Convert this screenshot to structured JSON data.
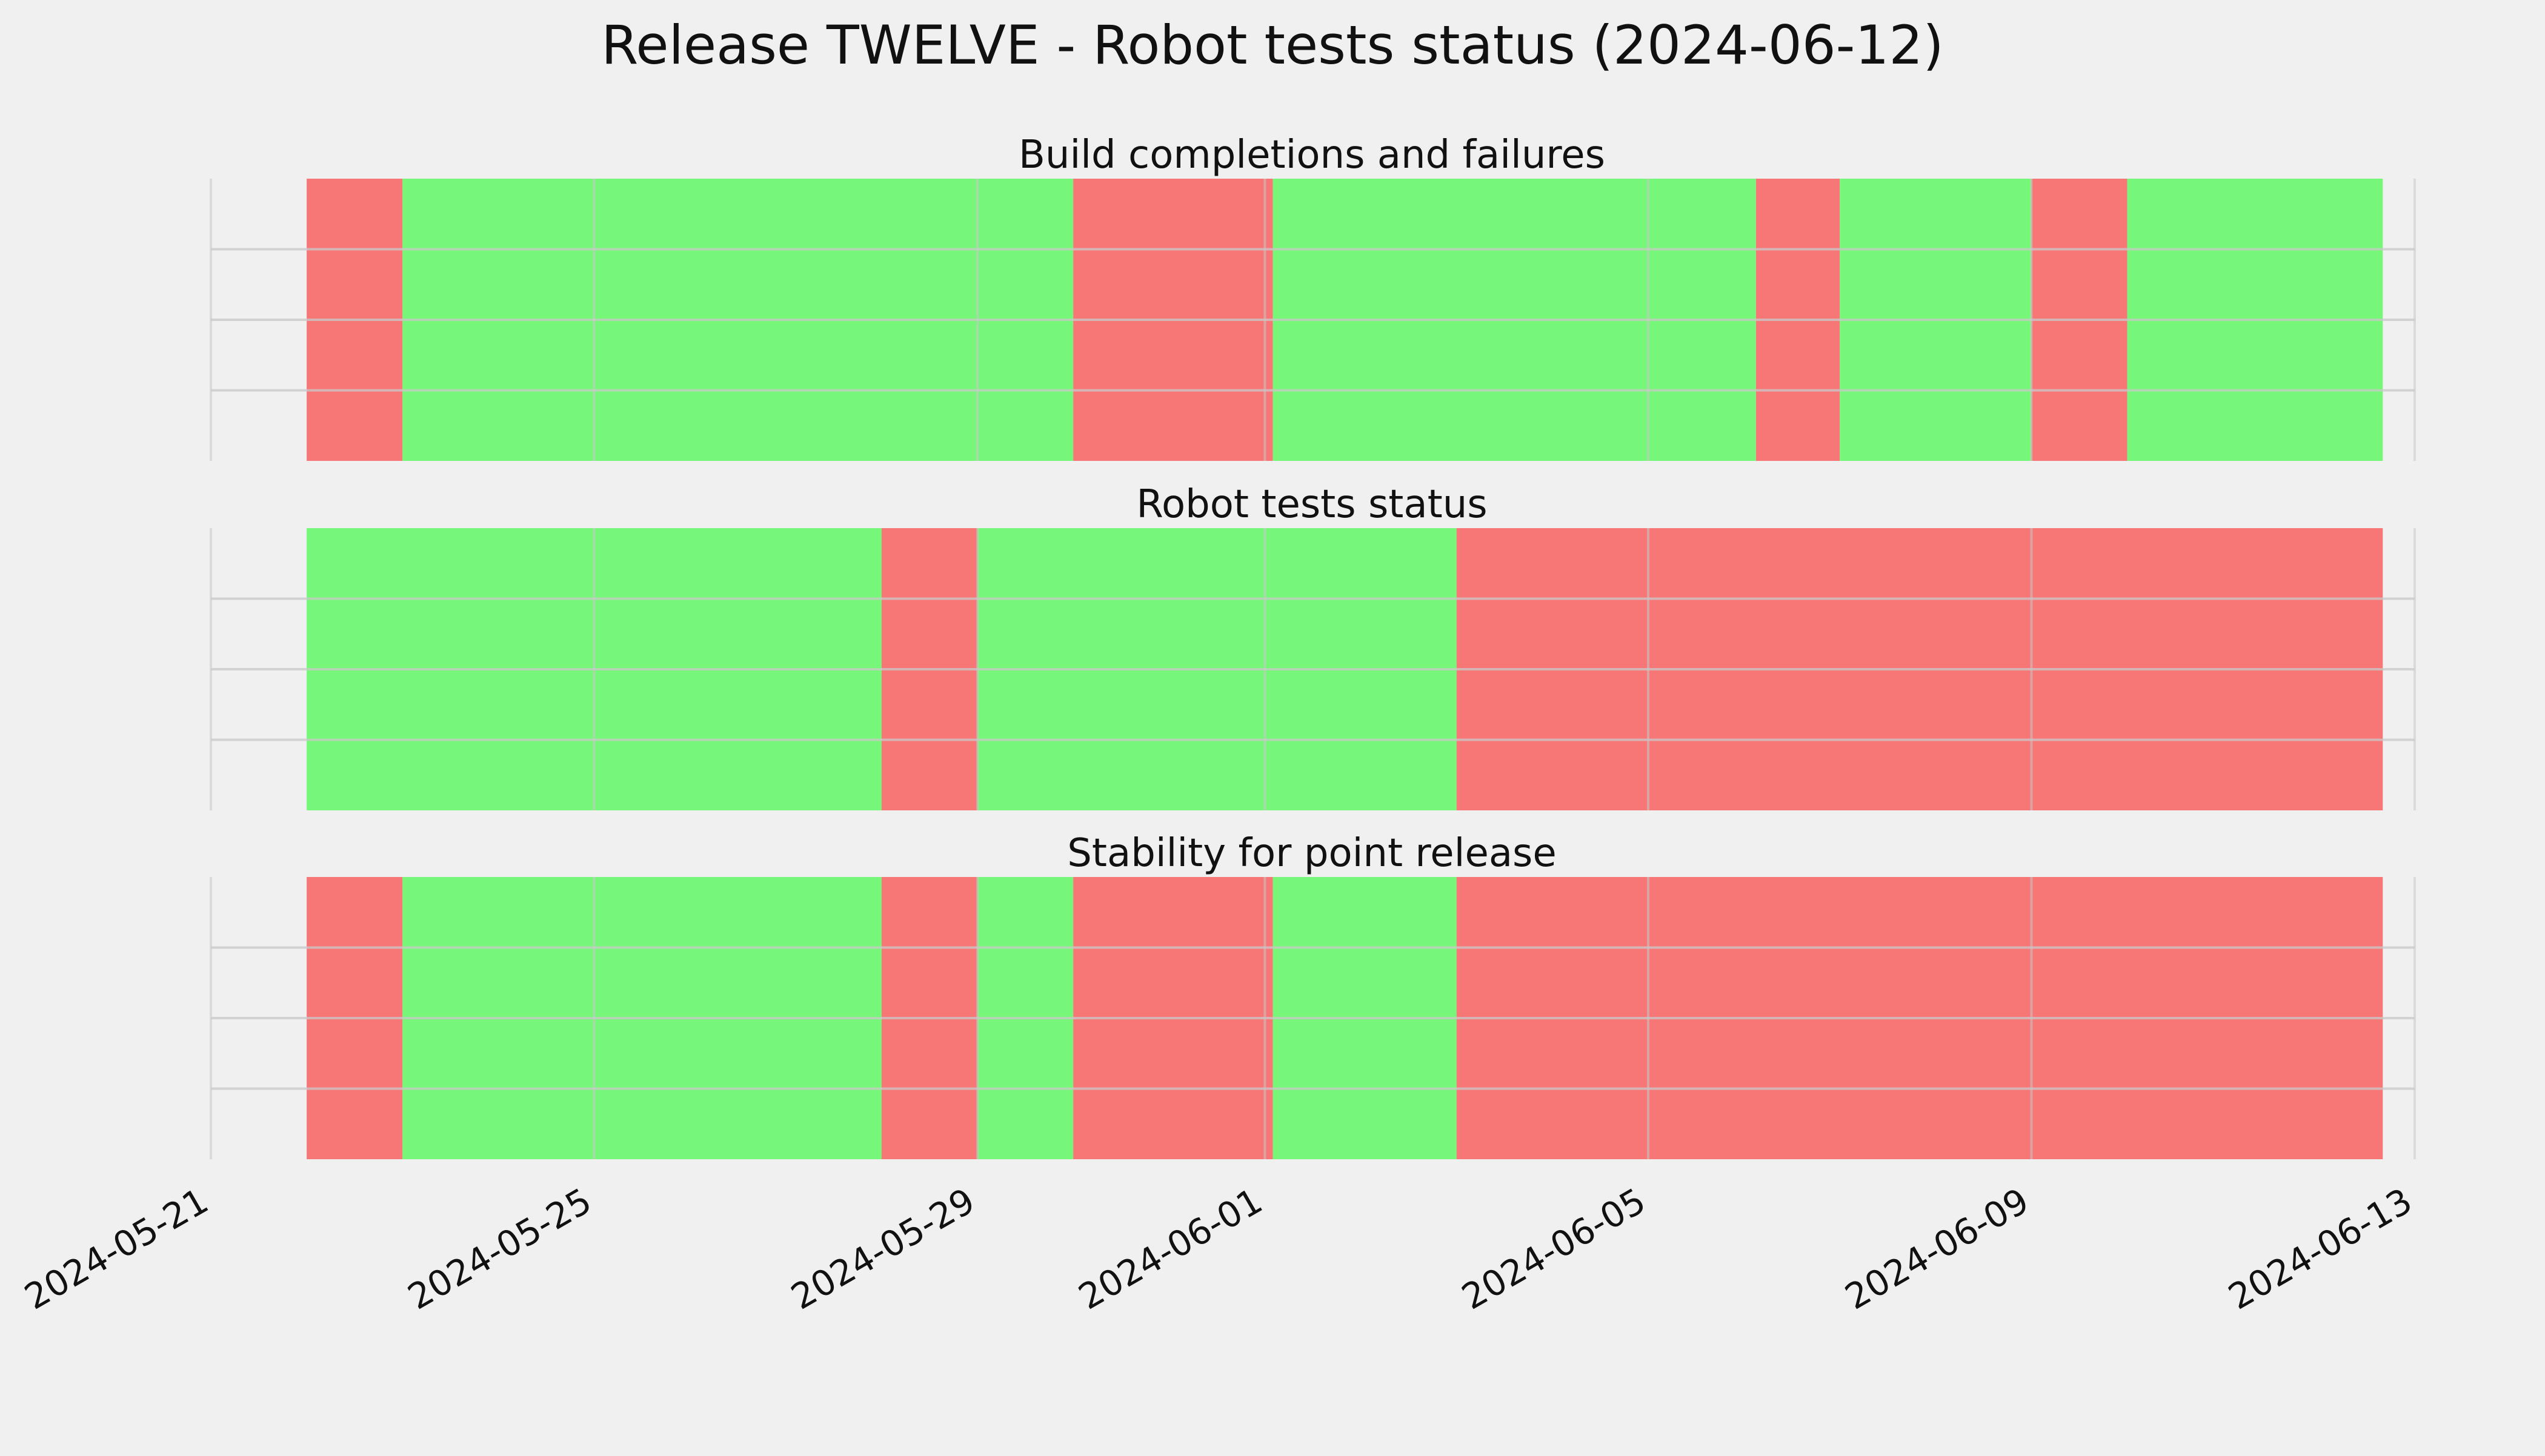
{
  "figure": {
    "title": "Release TWELVE - Robot tests status (2024-06-12)",
    "background": "#f0f0f0"
  },
  "colors": {
    "pass": "#77f77a",
    "fail": "#f77777",
    "grid": "#c8c8c8"
  },
  "chart_data": {
    "type": "timeline",
    "title": "Release TWELVE - Robot tests status (2024-06-12)",
    "x_axis": {
      "type": "date",
      "range": [
        "2024-05-21",
        "2024-06-13"
      ],
      "ticks": [
        "2024-05-21",
        "2024-05-25",
        "2024-05-29",
        "2024-06-01",
        "2024-06-05",
        "2024-06-09",
        "2024-06-13"
      ],
      "tick_rotation": "30deg"
    },
    "grid": true,
    "panels": [
      {
        "title": "Build completions and failures",
        "segments": [
          {
            "start": "2024-05-22T00:00",
            "end": "2024-05-23T00:00",
            "status": "fail"
          },
          {
            "start": "2024-05-23T00:00",
            "end": "2024-05-30T00:00",
            "status": "pass"
          },
          {
            "start": "2024-05-30T00:00",
            "end": "2024-06-01T02:00",
            "status": "fail"
          },
          {
            "start": "2024-06-01T02:00",
            "end": "2024-06-06T03:00",
            "status": "pass"
          },
          {
            "start": "2024-06-06T03:00",
            "end": "2024-06-07T00:00",
            "status": "fail"
          },
          {
            "start": "2024-06-07T00:00",
            "end": "2024-06-09T00:00",
            "status": "pass"
          },
          {
            "start": "2024-06-09T00:00",
            "end": "2024-06-10T00:00",
            "status": "fail"
          },
          {
            "start": "2024-06-10T00:00",
            "end": "2024-06-12T16:00",
            "status": "pass"
          }
        ]
      },
      {
        "title": "Robot tests status",
        "segments": [
          {
            "start": "2024-05-22T00:00",
            "end": "2024-05-28T00:00",
            "status": "pass"
          },
          {
            "start": "2024-05-28T00:00",
            "end": "2024-05-29T00:00",
            "status": "fail"
          },
          {
            "start": "2024-05-29T00:00",
            "end": "2024-06-03T00:00",
            "status": "pass"
          },
          {
            "start": "2024-06-03T00:00",
            "end": "2024-06-12T16:00",
            "status": "fail"
          }
        ]
      },
      {
        "title": "Stability for point release",
        "segments": [
          {
            "start": "2024-05-22T00:00",
            "end": "2024-05-23T00:00",
            "status": "fail"
          },
          {
            "start": "2024-05-23T00:00",
            "end": "2024-05-28T00:00",
            "status": "pass"
          },
          {
            "start": "2024-05-28T00:00",
            "end": "2024-05-29T00:00",
            "status": "fail"
          },
          {
            "start": "2024-05-29T00:00",
            "end": "2024-05-30T00:00",
            "status": "pass"
          },
          {
            "start": "2024-05-30T00:00",
            "end": "2024-06-01T02:00",
            "status": "fail"
          },
          {
            "start": "2024-06-01T02:00",
            "end": "2024-06-03T00:00",
            "status": "pass"
          },
          {
            "start": "2024-06-03T00:00",
            "end": "2024-06-12T16:00",
            "status": "fail"
          }
        ]
      }
    ]
  }
}
